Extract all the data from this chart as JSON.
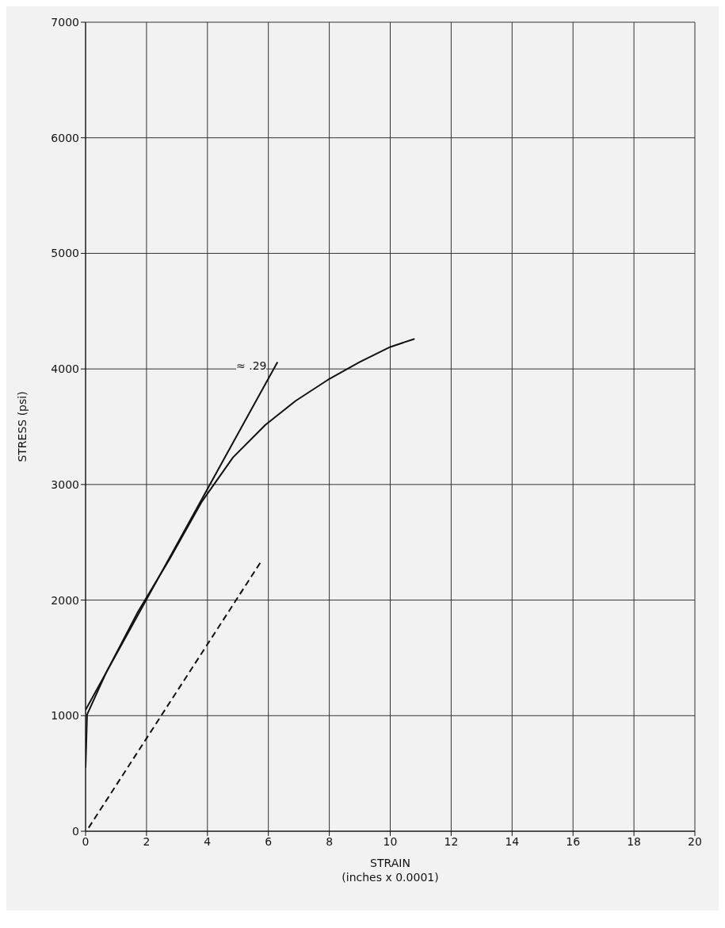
{
  "chart_data": {
    "type": "line",
    "xlabel": "STRAIN\n(inches x 0.0001)",
    "ylabel": "STRESS (psi)",
    "xlim": [
      0,
      20
    ],
    "xticks": [
      0,
      2,
      4,
      6,
      8,
      10,
      12,
      14,
      16,
      18,
      20
    ],
    "ylim": [
      0,
      7000
    ],
    "yticks": [
      0,
      1000,
      2000,
      3000,
      4000,
      5000,
      6000,
      7000
    ],
    "grid": true,
    "marker": "none",
    "series": [
      {
        "color": "#111111",
        "line_style": "solid",
        "x": [
          0,
          0.05,
          0.68,
          1.7,
          2.76,
          3.8,
          4.84,
          5.9,
          6.9,
          7.95,
          9.0,
          10.0,
          10.8
        ],
        "values": [
          550,
          1010,
          1375,
          1890,
          2355,
          2845,
          3235,
          3515,
          3725,
          3905,
          4060,
          4190,
          4260
        ]
      },
      {
        "color": "#111111",
        "line_style": "solid",
        "x": [
          0,
          6.3
        ],
        "values": [
          1050,
          4060
        ]
      },
      {
        "color": "#111111",
        "line_style": "dashed",
        "x": [
          0.1,
          5.8
        ],
        "values": [
          30,
          2350
        ]
      }
    ],
    "annotations": [
      "≈ .29"
    ]
  }
}
